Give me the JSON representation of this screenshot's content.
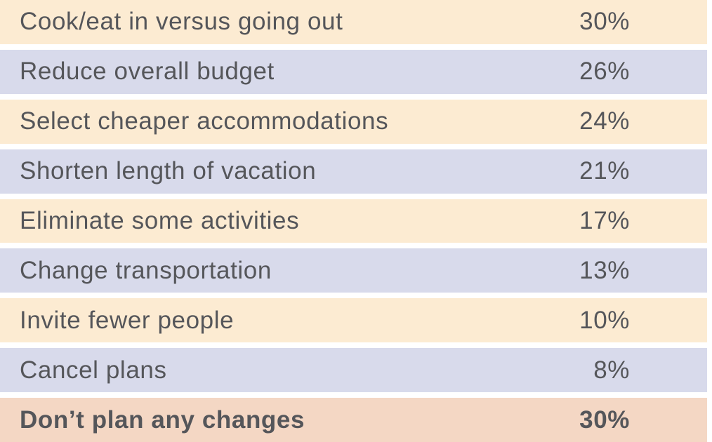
{
  "colors": {
    "peach": "#FCEBD2",
    "lavender": "#D8DAEB",
    "salmon": "#F4D7C4",
    "text": "#55565A",
    "separator": "#FFFFFF"
  },
  "chart_data": {
    "type": "table",
    "title": "",
    "columns": [
      "strategy",
      "percent"
    ],
    "categories": [
      "Cook/eat in versus going out",
      "Reduce overall budget",
      "Select cheaper accommodations",
      "Shorten length of vacation",
      "Eliminate some activities",
      "Change transportation",
      "Invite fewer people",
      "Cancel plans",
      "Don’t plan any changes"
    ],
    "values": [
      30,
      26,
      24,
      21,
      17,
      13,
      10,
      8,
      30
    ],
    "rows": [
      {
        "label": "Cook/eat in versus going out",
        "value": "30%",
        "percent": 30,
        "tone": "peach",
        "bold": false
      },
      {
        "label": "Reduce overall budget",
        "value": "26%",
        "percent": 26,
        "tone": "lavender",
        "bold": false
      },
      {
        "label": "Select cheaper accommodations",
        "value": "24%",
        "percent": 24,
        "tone": "peach",
        "bold": false
      },
      {
        "label": "Shorten length of vacation",
        "value": "21%",
        "percent": 21,
        "tone": "lavender",
        "bold": false
      },
      {
        "label": "Eliminate some activities",
        "value": "17%",
        "percent": 17,
        "tone": "peach",
        "bold": false
      },
      {
        "label": "Change transportation",
        "value": "13%",
        "percent": 13,
        "tone": "lavender",
        "bold": false
      },
      {
        "label": "Invite fewer people",
        "value": "10%",
        "percent": 10,
        "tone": "peach",
        "bold": false
      },
      {
        "label": "Cancel plans",
        "value": "8%",
        "percent": 8,
        "tone": "lavender",
        "bold": false
      },
      {
        "label": "Don’t plan any changes",
        "value": "30%",
        "percent": 30,
        "tone": "salmon",
        "bold": true
      }
    ],
    "legend": null,
    "grid": false
  }
}
